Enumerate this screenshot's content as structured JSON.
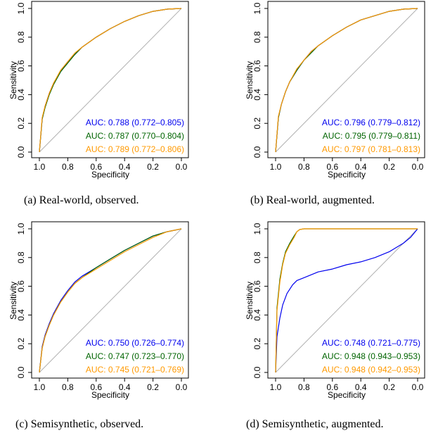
{
  "colors": {
    "blue": "#0000ee",
    "green": "#006400",
    "orange": "#ff9900",
    "diagonal": "#b0b0b0"
  },
  "chart_data": [
    {
      "type": "line",
      "caption": "(a) Real-world, observed.",
      "xlabel": "Specificity",
      "ylabel": "Sensitivity",
      "xlim": [
        1.0,
        0.0
      ],
      "ylim": [
        0.0,
        1.0
      ],
      "x_ticks": [
        "1.0",
        "0.8",
        "0.6",
        "0.4",
        "0.2",
        "0.0"
      ],
      "y_ticks": [
        "0.0",
        "0.2",
        "0.4",
        "0.6",
        "0.8",
        "1.0"
      ],
      "legend": "bottom-right",
      "series": [
        {
          "name": "AUC: 0.788 (0.772–0.805)",
          "color": "#0000ee",
          "x": [
            1.0,
            0.98,
            0.96,
            0.93,
            0.9,
            0.85,
            0.8,
            0.75,
            0.7,
            0.6,
            0.5,
            0.4,
            0.3,
            0.2,
            0.1,
            0.0
          ],
          "y": [
            0.0,
            0.23,
            0.32,
            0.41,
            0.48,
            0.56,
            0.63,
            0.68,
            0.73,
            0.8,
            0.86,
            0.91,
            0.95,
            0.98,
            0.995,
            1.0
          ]
        },
        {
          "name": "AUC: 0.787 (0.770–0.804)",
          "color": "#006400",
          "x": [
            1.0,
            0.98,
            0.96,
            0.93,
            0.9,
            0.85,
            0.8,
            0.75,
            0.7,
            0.6,
            0.5,
            0.4,
            0.3,
            0.2,
            0.1,
            0.0
          ],
          "y": [
            0.0,
            0.23,
            0.31,
            0.4,
            0.47,
            0.56,
            0.62,
            0.68,
            0.73,
            0.8,
            0.86,
            0.91,
            0.95,
            0.98,
            0.995,
            1.0
          ]
        },
        {
          "name": "AUC: 0.789 (0.772–0.806)",
          "color": "#ff9900",
          "x": [
            1.0,
            0.98,
            0.96,
            0.93,
            0.9,
            0.85,
            0.8,
            0.75,
            0.7,
            0.6,
            0.5,
            0.4,
            0.3,
            0.2,
            0.1,
            0.0
          ],
          "y": [
            0.0,
            0.24,
            0.32,
            0.41,
            0.48,
            0.57,
            0.63,
            0.69,
            0.73,
            0.8,
            0.86,
            0.91,
            0.95,
            0.98,
            0.995,
            1.0
          ]
        }
      ]
    },
    {
      "type": "line",
      "caption": "(b) Real-world, augmented.",
      "xlabel": "Specificity",
      "ylabel": "Sensitivity",
      "xlim": [
        1.0,
        0.0
      ],
      "ylim": [
        0.0,
        1.0
      ],
      "x_ticks": [
        "1.0",
        "0.8",
        "0.6",
        "0.4",
        "0.2",
        "0.0"
      ],
      "y_ticks": [
        "0.0",
        "0.2",
        "0.4",
        "0.6",
        "0.8",
        "1.0"
      ],
      "legend": "bottom-right",
      "series": [
        {
          "name": "AUC: 0.796 (0.779–0.812)",
          "color": "#0000ee",
          "x": [
            1.0,
            0.98,
            0.96,
            0.93,
            0.9,
            0.85,
            0.8,
            0.75,
            0.7,
            0.6,
            0.5,
            0.4,
            0.3,
            0.2,
            0.1,
            0.0
          ],
          "y": [
            0.0,
            0.24,
            0.33,
            0.42,
            0.49,
            0.57,
            0.64,
            0.7,
            0.74,
            0.81,
            0.87,
            0.92,
            0.95,
            0.98,
            0.995,
            1.0
          ]
        },
        {
          "name": "AUC: 0.795 (0.779–0.811)",
          "color": "#006400",
          "x": [
            1.0,
            0.98,
            0.96,
            0.93,
            0.9,
            0.85,
            0.8,
            0.75,
            0.7,
            0.6,
            0.5,
            0.4,
            0.3,
            0.2,
            0.1,
            0.0
          ],
          "y": [
            0.0,
            0.24,
            0.33,
            0.42,
            0.49,
            0.57,
            0.64,
            0.69,
            0.74,
            0.81,
            0.87,
            0.92,
            0.95,
            0.98,
            0.995,
            1.0
          ]
        },
        {
          "name": "AUC: 0.797 (0.781–0.813)",
          "color": "#ff9900",
          "x": [
            1.0,
            0.98,
            0.96,
            0.93,
            0.9,
            0.85,
            0.8,
            0.75,
            0.7,
            0.6,
            0.5,
            0.4,
            0.3,
            0.2,
            0.1,
            0.0
          ],
          "y": [
            0.0,
            0.25,
            0.33,
            0.42,
            0.49,
            0.58,
            0.64,
            0.7,
            0.74,
            0.81,
            0.87,
            0.92,
            0.95,
            0.98,
            0.995,
            1.0
          ]
        }
      ]
    },
    {
      "type": "line",
      "caption": "(c) Semisynthetic, observed.",
      "xlabel": "Specificity",
      "ylabel": "Sensitivity",
      "xlim": [
        1.0,
        0.0
      ],
      "ylim": [
        0.0,
        1.0
      ],
      "x_ticks": [
        "1.0",
        "0.8",
        "0.6",
        "0.4",
        "0.2",
        "0.0"
      ],
      "y_ticks": [
        "0.0",
        "0.2",
        "0.4",
        "0.6",
        "0.8",
        "1.0"
      ],
      "legend": "bottom-right",
      "series": [
        {
          "name": "AUC: 0.750 (0.726–0.774)",
          "color": "#0000ee",
          "x": [
            1.0,
            0.98,
            0.96,
            0.93,
            0.9,
            0.85,
            0.8,
            0.75,
            0.7,
            0.6,
            0.5,
            0.4,
            0.3,
            0.2,
            0.1,
            0.0
          ],
          "y": [
            0.0,
            0.18,
            0.26,
            0.34,
            0.41,
            0.5,
            0.57,
            0.63,
            0.67,
            0.73,
            0.79,
            0.85,
            0.9,
            0.95,
            0.98,
            1.0
          ]
        },
        {
          "name": "AUC: 0.747 (0.723–0.770)",
          "color": "#006400",
          "x": [
            1.0,
            0.98,
            0.96,
            0.93,
            0.9,
            0.85,
            0.8,
            0.75,
            0.7,
            0.6,
            0.5,
            0.4,
            0.3,
            0.2,
            0.1,
            0.0
          ],
          "y": [
            0.0,
            0.17,
            0.25,
            0.33,
            0.4,
            0.49,
            0.56,
            0.62,
            0.66,
            0.73,
            0.79,
            0.85,
            0.9,
            0.95,
            0.98,
            1.0
          ]
        },
        {
          "name": "AUC: 0.745 (0.721–0.769)",
          "color": "#ff9900",
          "x": [
            1.0,
            0.98,
            0.96,
            0.93,
            0.9,
            0.85,
            0.8,
            0.75,
            0.7,
            0.6,
            0.5,
            0.4,
            0.3,
            0.2,
            0.1,
            0.0
          ],
          "y": [
            0.0,
            0.17,
            0.25,
            0.33,
            0.4,
            0.49,
            0.56,
            0.62,
            0.66,
            0.72,
            0.78,
            0.84,
            0.89,
            0.94,
            0.98,
            1.0
          ]
        }
      ]
    },
    {
      "type": "line",
      "caption": "(d) Semisynthetic, augmented.",
      "xlabel": "Specificity",
      "ylabel": "Sensitivity",
      "xlim": [
        1.0,
        0.0
      ],
      "ylim": [
        0.0,
        1.0
      ],
      "x_ticks": [
        "1.0",
        "0.8",
        "0.6",
        "0.4",
        "0.2",
        "0.0"
      ],
      "y_ticks": [
        "0.0",
        "0.2",
        "0.4",
        "0.6",
        "0.8",
        "1.0"
      ],
      "legend": "bottom-right",
      "series": [
        {
          "name": "AUC: 0.748 (0.721–0.775)",
          "color": "#0000ee",
          "x": [
            1.0,
            0.99,
            0.97,
            0.95,
            0.92,
            0.88,
            0.85,
            0.8,
            0.7,
            0.6,
            0.5,
            0.4,
            0.3,
            0.2,
            0.1,
            0.05,
            0.0
          ],
          "y": [
            0.0,
            0.25,
            0.38,
            0.47,
            0.55,
            0.61,
            0.64,
            0.66,
            0.7,
            0.72,
            0.75,
            0.77,
            0.8,
            0.84,
            0.9,
            0.94,
            1.0
          ]
        },
        {
          "name": "AUC: 0.948 (0.943–0.953)",
          "color": "#006400",
          "x": [
            1.0,
            0.99,
            0.97,
            0.95,
            0.93,
            0.9,
            0.87,
            0.85,
            0.83,
            0.8,
            0.6,
            0.4,
            0.2,
            0.0
          ],
          "y": [
            0.0,
            0.45,
            0.65,
            0.76,
            0.84,
            0.9,
            0.95,
            0.98,
            0.995,
            1.0,
            1.0,
            1.0,
            1.0,
            1.0
          ]
        },
        {
          "name": "AUC: 0.948 (0.942–0.953)",
          "color": "#ff9900",
          "x": [
            1.0,
            0.99,
            0.97,
            0.95,
            0.93,
            0.9,
            0.87,
            0.85,
            0.83,
            0.8,
            0.6,
            0.4,
            0.2,
            0.0
          ],
          "y": [
            0.0,
            0.43,
            0.63,
            0.75,
            0.83,
            0.89,
            0.94,
            0.98,
            0.995,
            1.0,
            1.0,
            1.0,
            1.0,
            1.0
          ]
        }
      ]
    }
  ]
}
